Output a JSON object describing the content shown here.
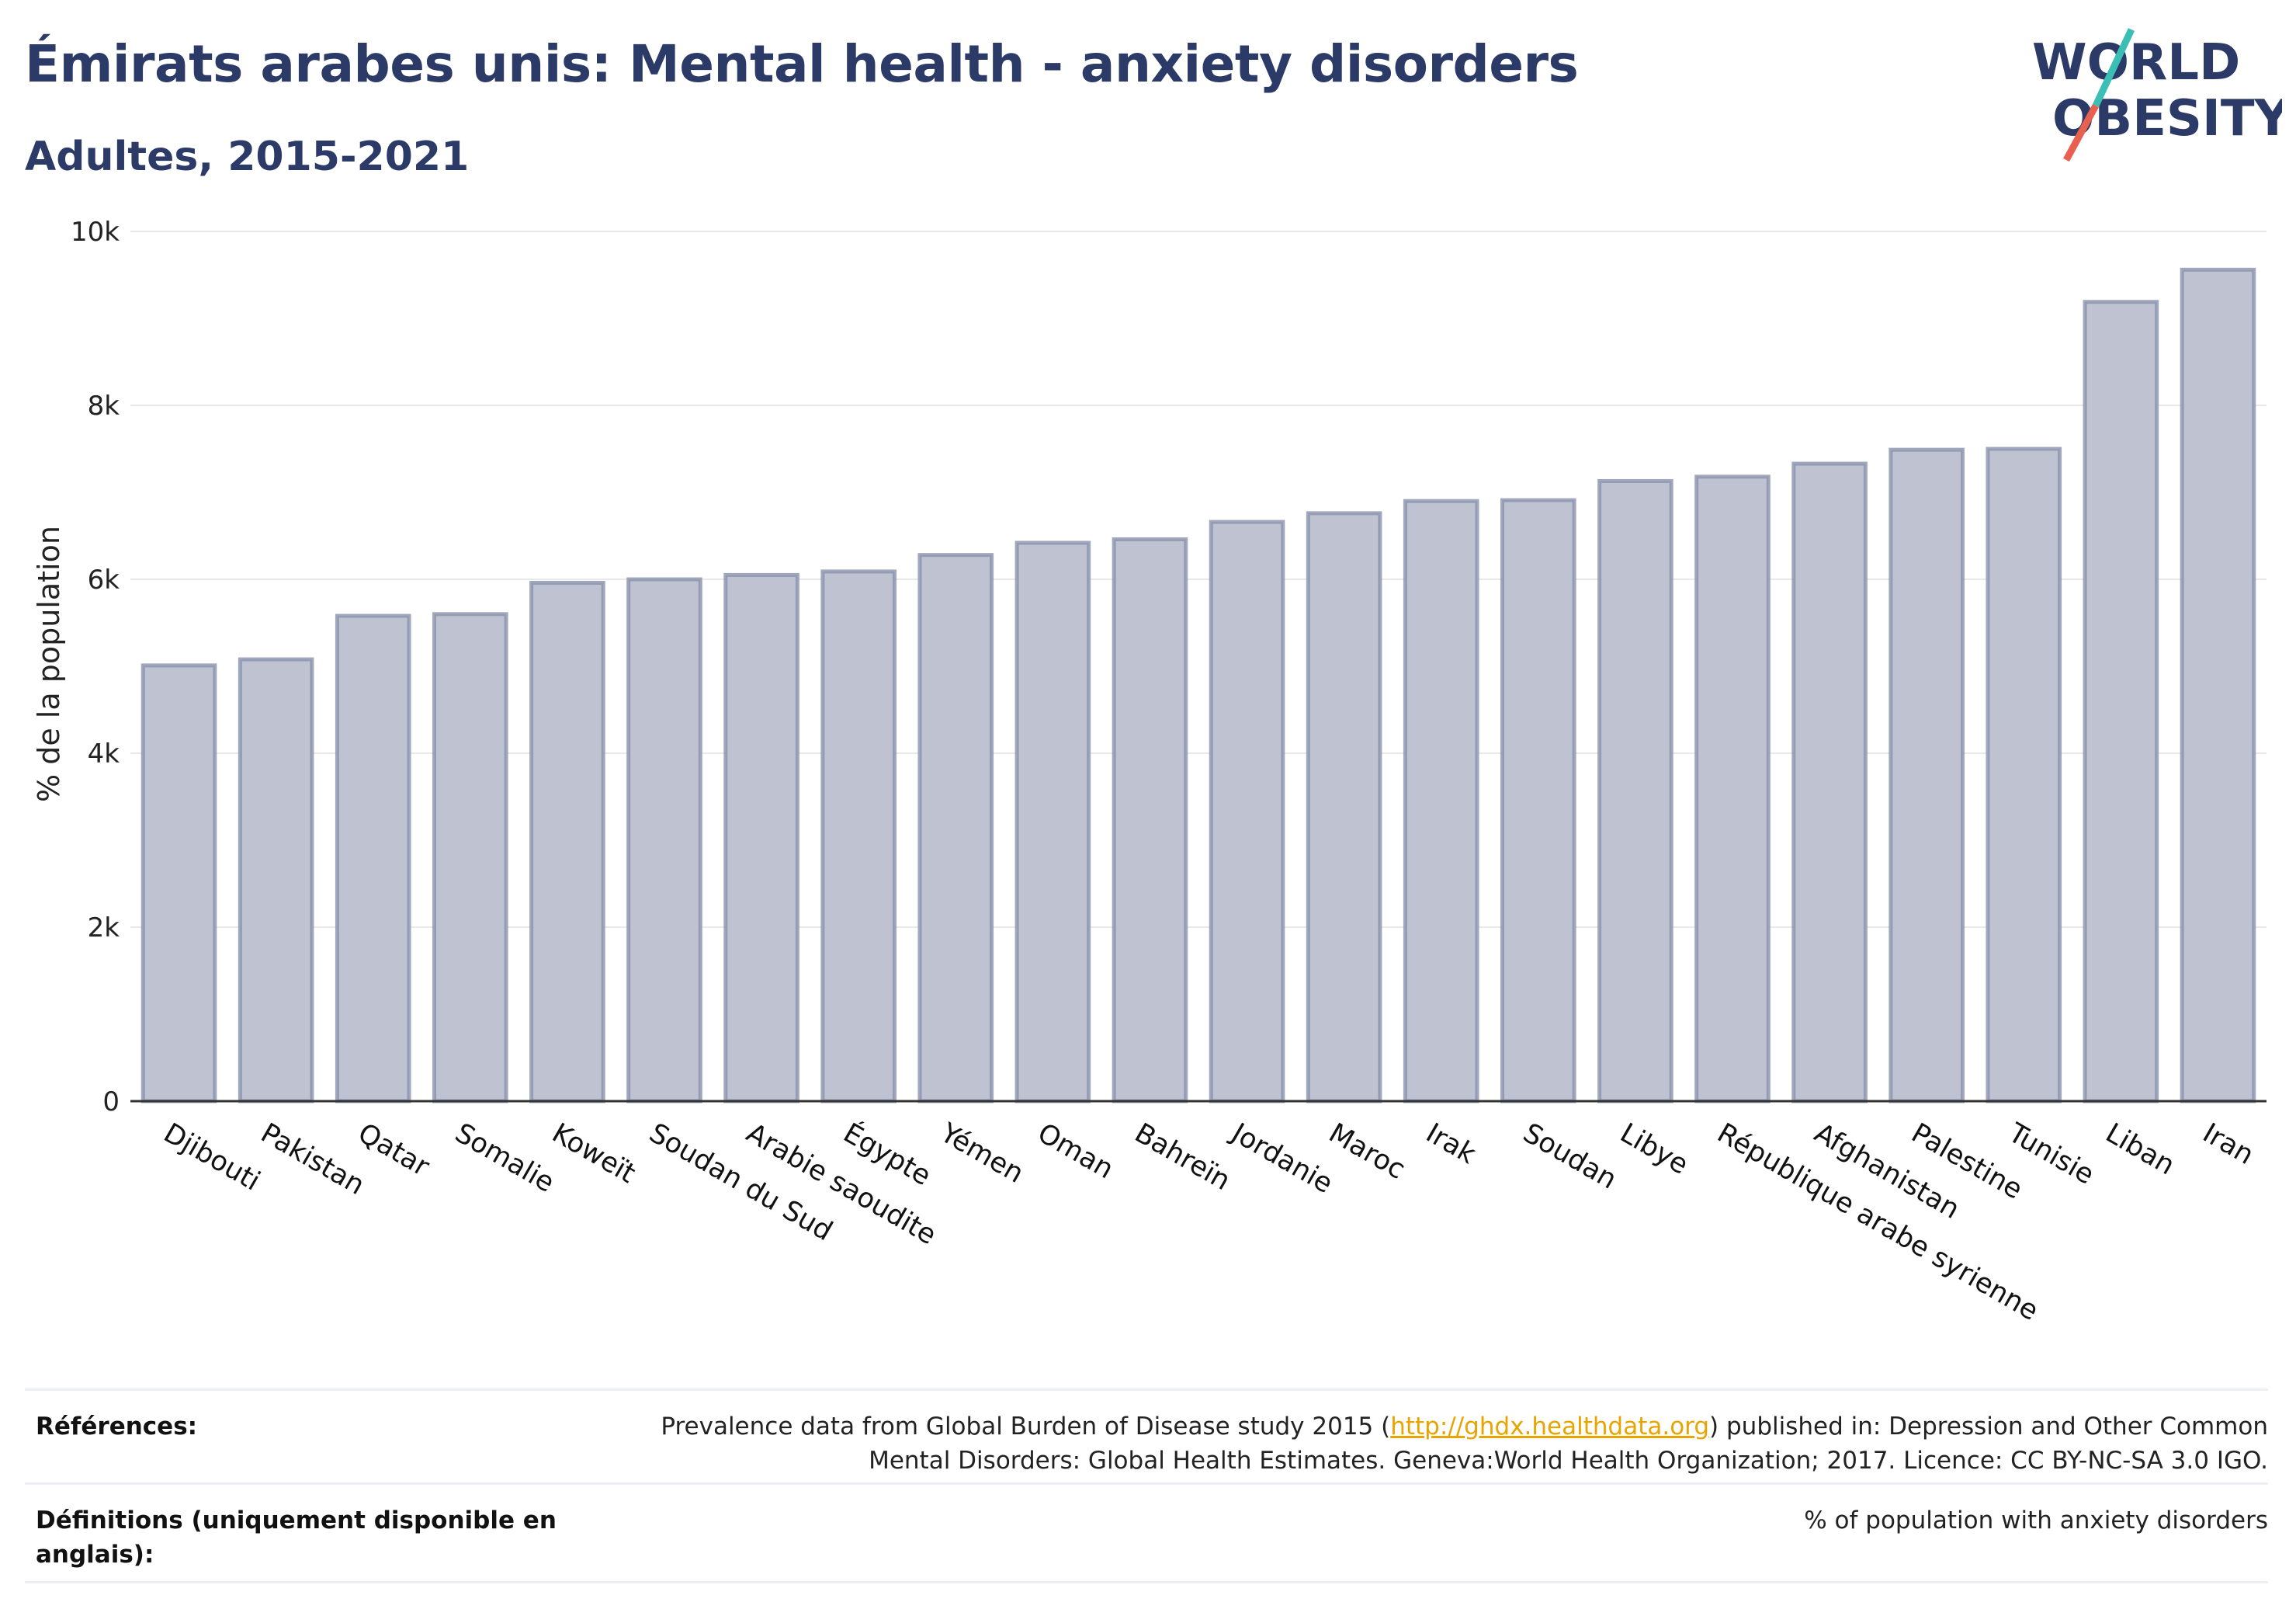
{
  "header": {
    "title": "Émirats arabes unis: Mental health - anxiety disorders",
    "subtitle": "Adultes, 2015-2021"
  },
  "logo": {
    "line1": "WORLD",
    "line2": "OBESITY",
    "colors": {
      "text": "#2b3a66",
      "slash_top": "#3bbfb5",
      "slash_bottom": "#e8604f"
    }
  },
  "colors": {
    "bar_fill": "#bfc3d1",
    "bar_stroke": "#8a92ad",
    "grid": "#e6e8ee",
    "axis": "#333333"
  },
  "chart_data": {
    "type": "bar",
    "title": "Émirats arabes unis: Mental health - anxiety disorders",
    "subtitle": "Adultes, 2015-2021",
    "xlabel": "",
    "ylabel": "% de la population",
    "ylim": [
      0,
      10000
    ],
    "yticks": [
      0,
      2000,
      4000,
      6000,
      8000,
      10000
    ],
    "ytick_labels": [
      "0",
      "2k",
      "4k",
      "6k",
      "8k",
      "10k"
    ],
    "grid": true,
    "categories": [
      "Djibouti",
      "Pakistan",
      "Qatar",
      "Somalie",
      "Koweït",
      "Soudan du Sud",
      "Arabie saoudite",
      "Égypte",
      "Yémen",
      "Oman",
      "Bahreïn",
      "Jordanie",
      "Maroc",
      "Irak",
      "Soudan",
      "Libye",
      "République arabe syrienne",
      "Afghanistan",
      "Palestine",
      "Tunisie",
      "Liban",
      "Iran"
    ],
    "values": [
      5010,
      5080,
      5580,
      5600,
      5960,
      6000,
      6050,
      6090,
      6280,
      6420,
      6460,
      6660,
      6760,
      6900,
      6910,
      7130,
      7180,
      7330,
      7490,
      7500,
      9190,
      9560
    ]
  },
  "references": {
    "label": "Références:",
    "text_before_link": "Prevalence data from Global Burden of Disease study 2015 (",
    "link": "http://ghdx.healthdata.org",
    "text_after_link": ") published in: Depression and Other Common",
    "line2": "Mental Disorders: Global Health Estimates. Geneva:World Health Organization; 2017. Licence: CC BY-NC-SA 3.0 IGO."
  },
  "definitions": {
    "label_line1": "Définitions (uniquement disponible en",
    "label_line2": "anglais):",
    "text": "% of population with anxiety disorders"
  }
}
